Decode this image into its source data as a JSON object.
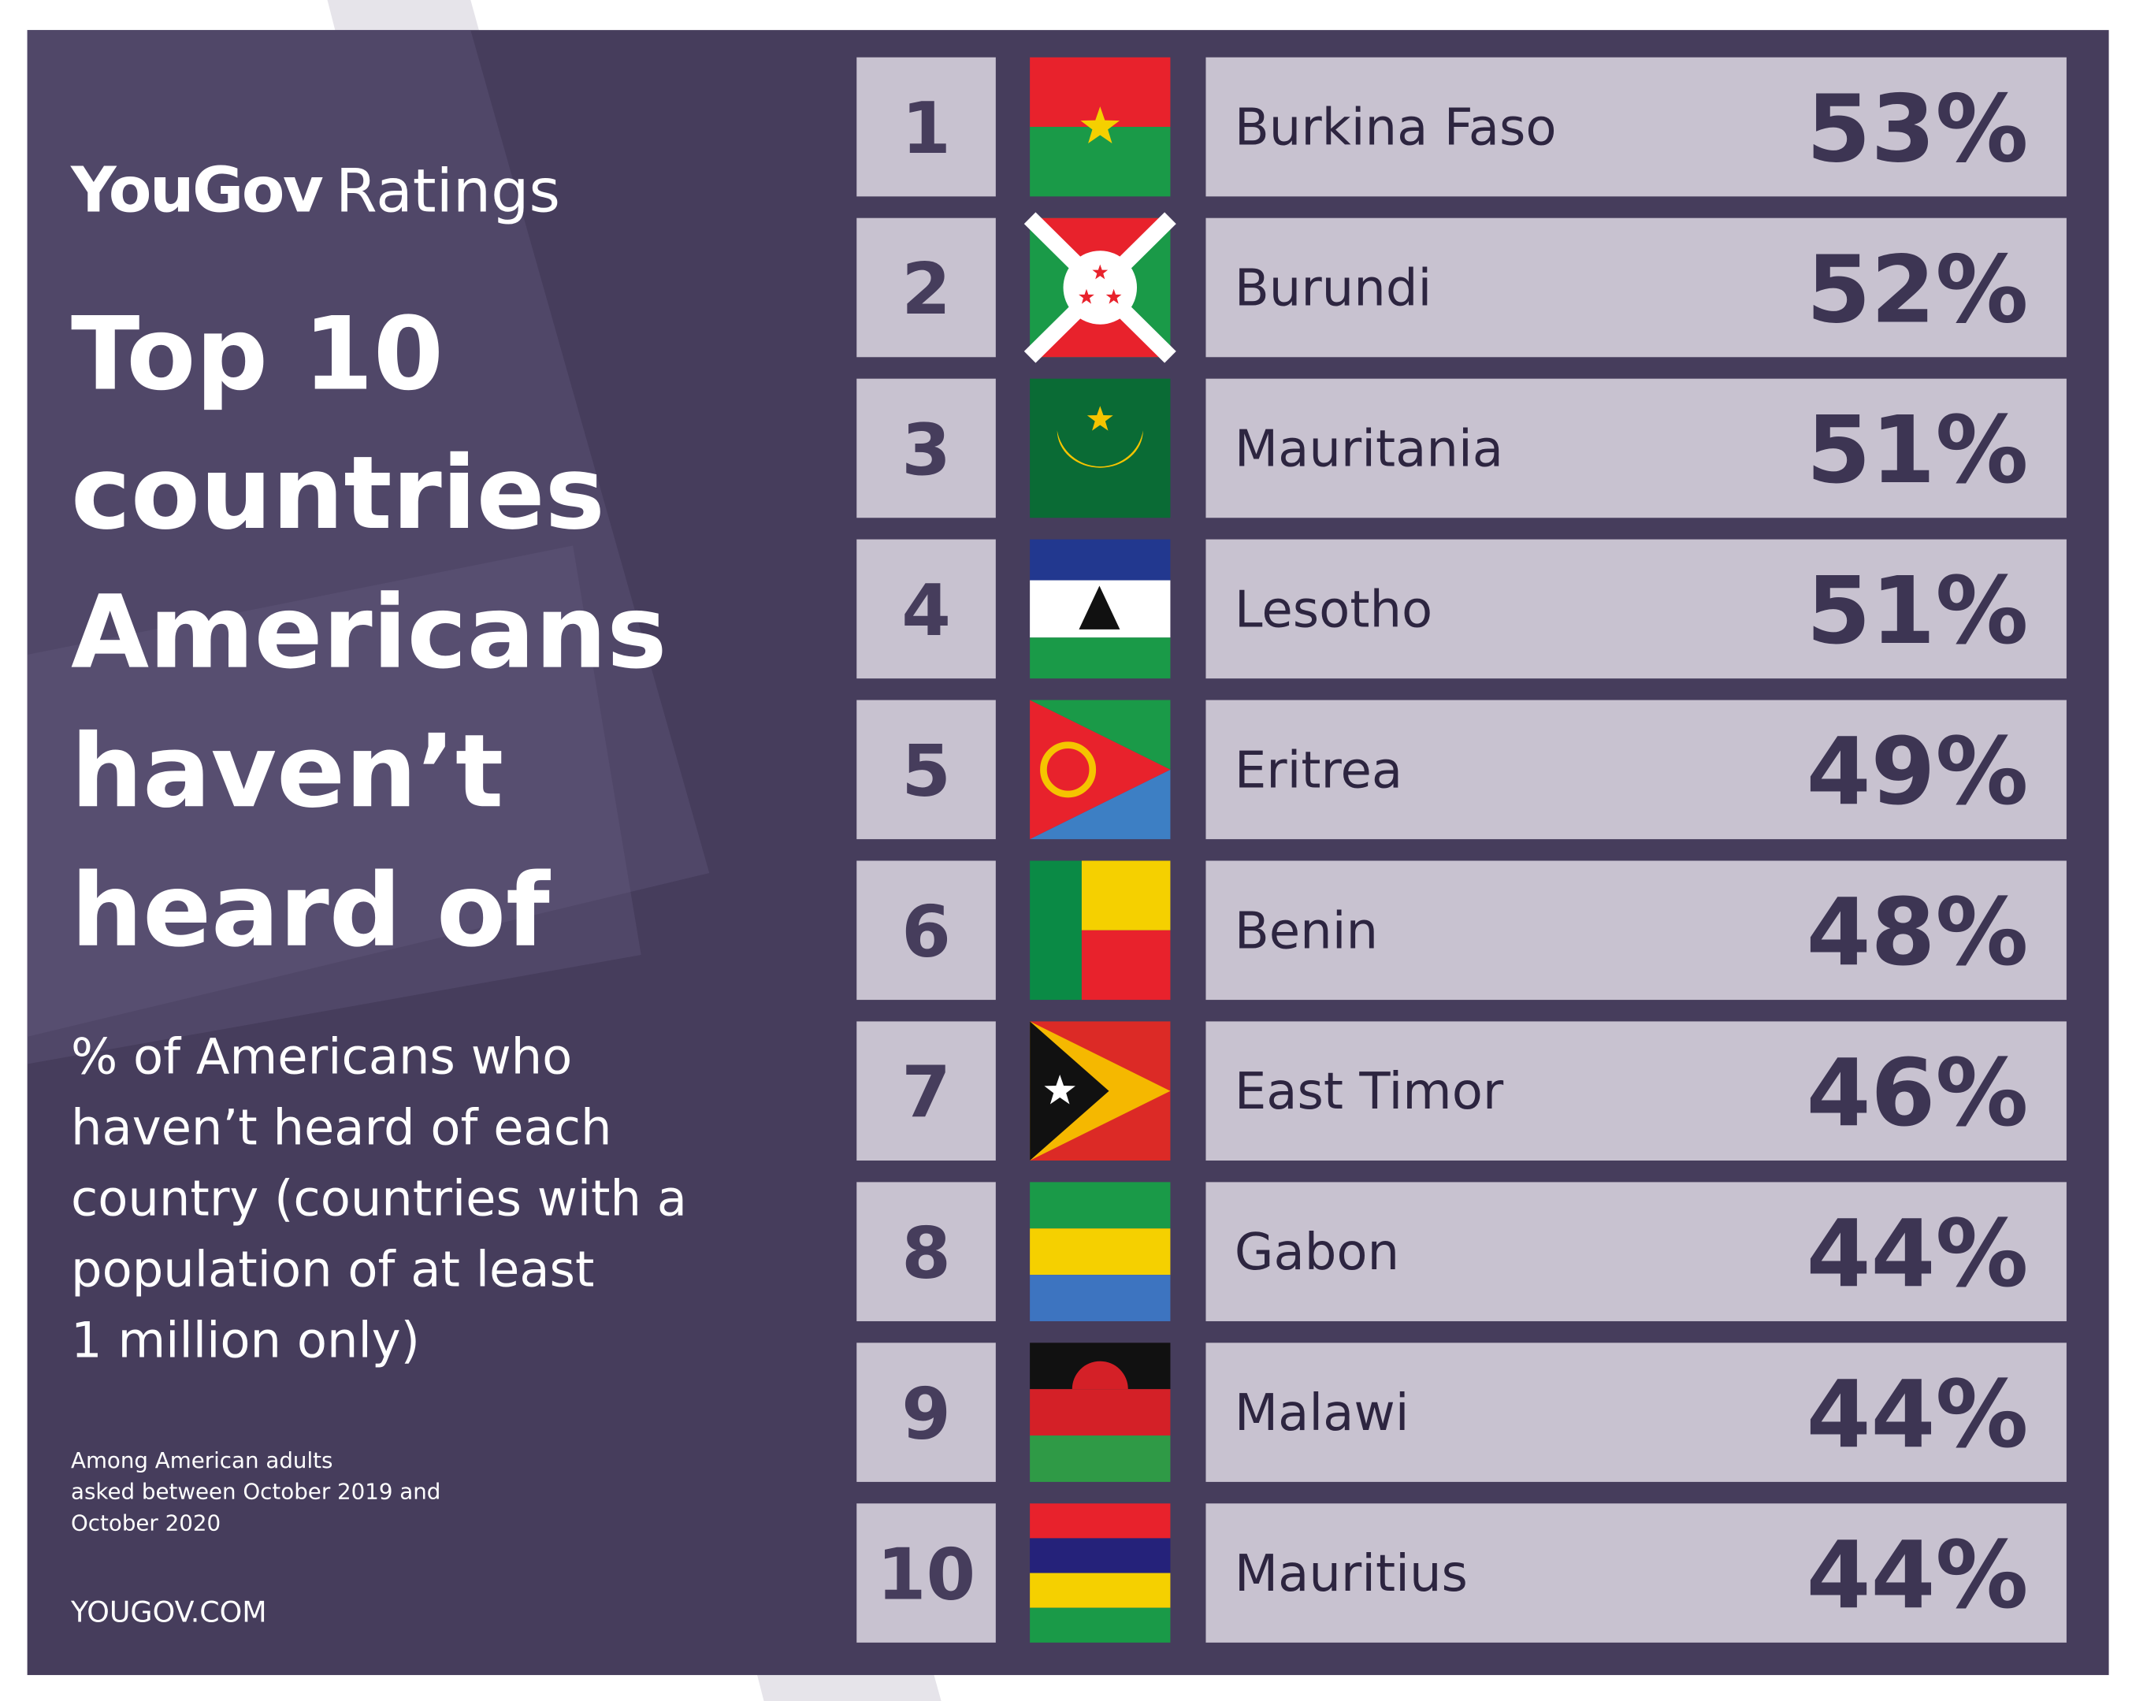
{
  "logo": {
    "brand": "YouGov",
    "product": "Ratings"
  },
  "title": [
    "Top 10",
    "countries",
    "Americans",
    "haven’t",
    "heard of"
  ],
  "subtitle": [
    "% of Americans who",
    "haven’t heard of each",
    "country (countries with a",
    "population of at least",
    "1 million only)"
  ],
  "note": [
    "Among American adults",
    "asked between October 2019 and",
    "October 2020"
  ],
  "footer": "YOUGOV.COM",
  "rows": [
    {
      "rank": "1",
      "country": "Burkina Faso",
      "value": "53%"
    },
    {
      "rank": "2",
      "country": "Burundi",
      "value": "52%"
    },
    {
      "rank": "3",
      "country": "Mauritania",
      "value": "51%"
    },
    {
      "rank": "4",
      "country": "Lesotho",
      "value": "51%"
    },
    {
      "rank": "5",
      "country": "Eritrea",
      "value": "49%"
    },
    {
      "rank": "6",
      "country": "Benin",
      "value": "48%"
    },
    {
      "rank": "7",
      "country": "East Timor",
      "value": "46%"
    },
    {
      "rank": "8",
      "country": "Gabon",
      "value": "44%"
    },
    {
      "rank": "9",
      "country": "Malawi",
      "value": "44%"
    },
    {
      "rank": "10",
      "country": "Mauritius",
      "value": "44%"
    }
  ]
}
